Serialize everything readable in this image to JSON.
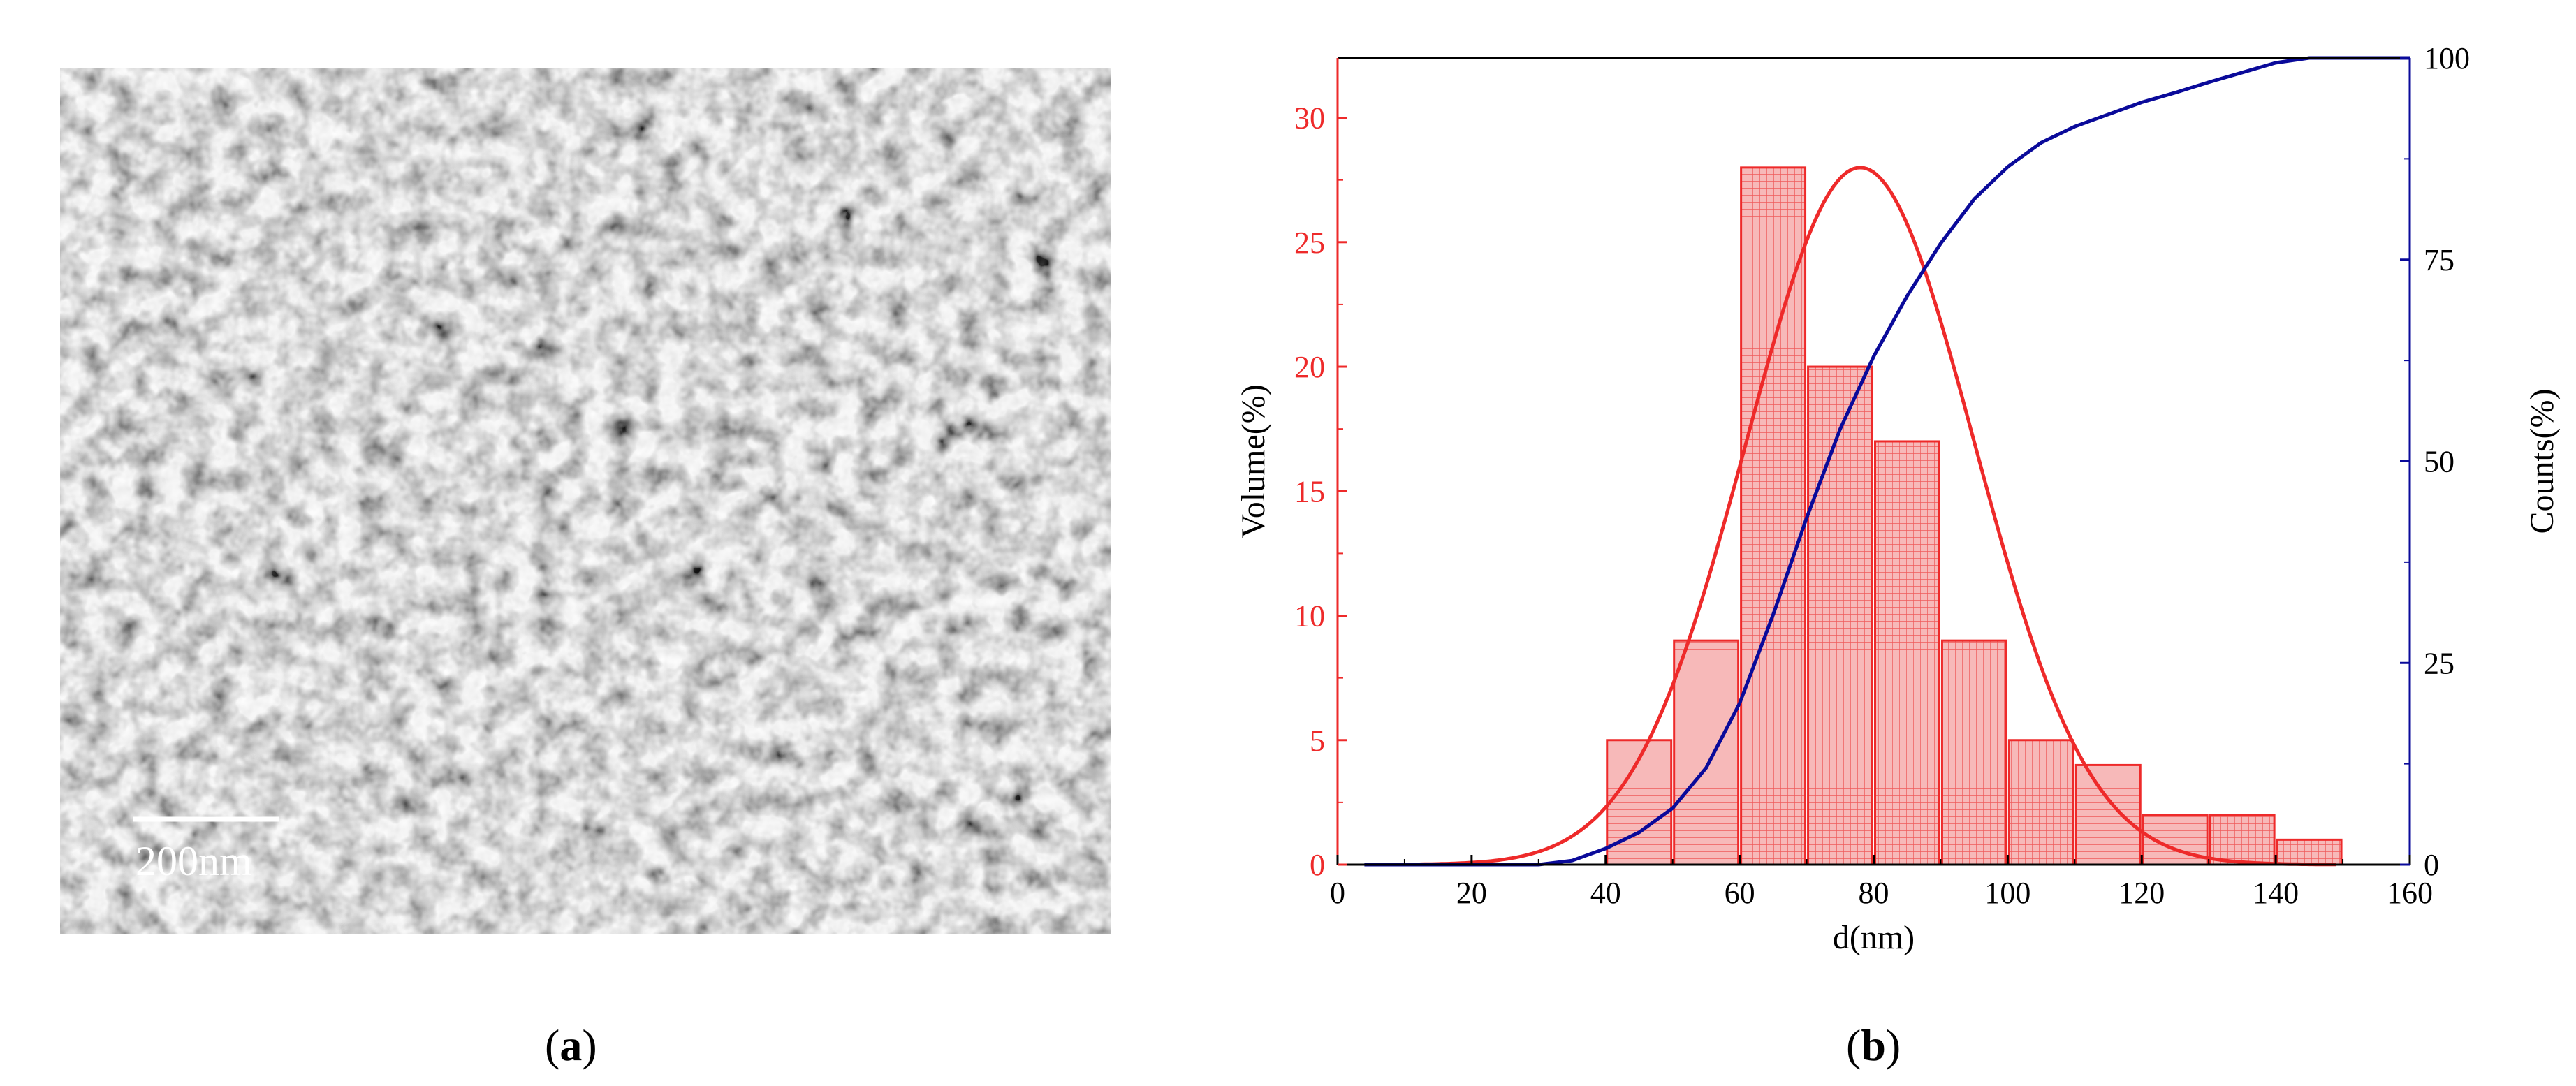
{
  "panel_a": {
    "scale_bar_label": "200nm"
  },
  "captions": {
    "a": "a",
    "b": "b"
  },
  "colors": {
    "volume": "#ee2a2a",
    "counts": "#0a0a9a",
    "bar_fill": "#f7b9b9"
  },
  "chart_data": {
    "type": "bar",
    "title": "",
    "xlabel": "d(nm)",
    "ylabel": "Volume(%)",
    "y2label": "Counts(%)",
    "xlim": [
      0,
      160
    ],
    "ylim": [
      0,
      32.4
    ],
    "y2lim": [
      0,
      100
    ],
    "x_ticks": [
      0,
      20,
      40,
      60,
      80,
      100,
      120,
      140,
      160
    ],
    "y_ticks": [
      0,
      5,
      10,
      15,
      20,
      25,
      30
    ],
    "y2_ticks": [
      0,
      25,
      50,
      75,
      100
    ],
    "bins": [
      {
        "start": 40,
        "end": 50,
        "value": 5
      },
      {
        "start": 50,
        "end": 60,
        "value": 9
      },
      {
        "start": 60,
        "end": 70,
        "value": 28
      },
      {
        "start": 70,
        "end": 80,
        "value": 20
      },
      {
        "start": 80,
        "end": 90,
        "value": 17
      },
      {
        "start": 90,
        "end": 100,
        "value": 9
      },
      {
        "start": 100,
        "end": 110,
        "value": 5
      },
      {
        "start": 110,
        "end": 120,
        "value": 4
      },
      {
        "start": 120,
        "end": 130,
        "value": 2
      },
      {
        "start": 130,
        "end": 140,
        "value": 2
      },
      {
        "start": 140,
        "end": 150,
        "value": 1
      }
    ],
    "normal_fit": {
      "name": "Volume fit",
      "axis": "left",
      "mean": 78,
      "sd": 17,
      "peak": 28,
      "x_from": 11,
      "x_to": 149
    },
    "cumulative": {
      "name": "Counts",
      "axis": "right",
      "x": [
        4,
        30,
        35,
        40,
        45,
        50,
        55,
        60,
        65,
        70,
        75,
        80,
        85,
        90,
        95,
        100,
        105,
        110,
        115,
        120,
        125,
        130,
        135,
        140,
        145,
        160
      ],
      "values": [
        0,
        0,
        0.5,
        2,
        4,
        7,
        12,
        20,
        31,
        43,
        54,
        63,
        70.5,
        77,
        82.5,
        86.5,
        89.5,
        91.5,
        93,
        94.5,
        95.7,
        97,
        98.2,
        99.4,
        100,
        100
      ]
    }
  }
}
